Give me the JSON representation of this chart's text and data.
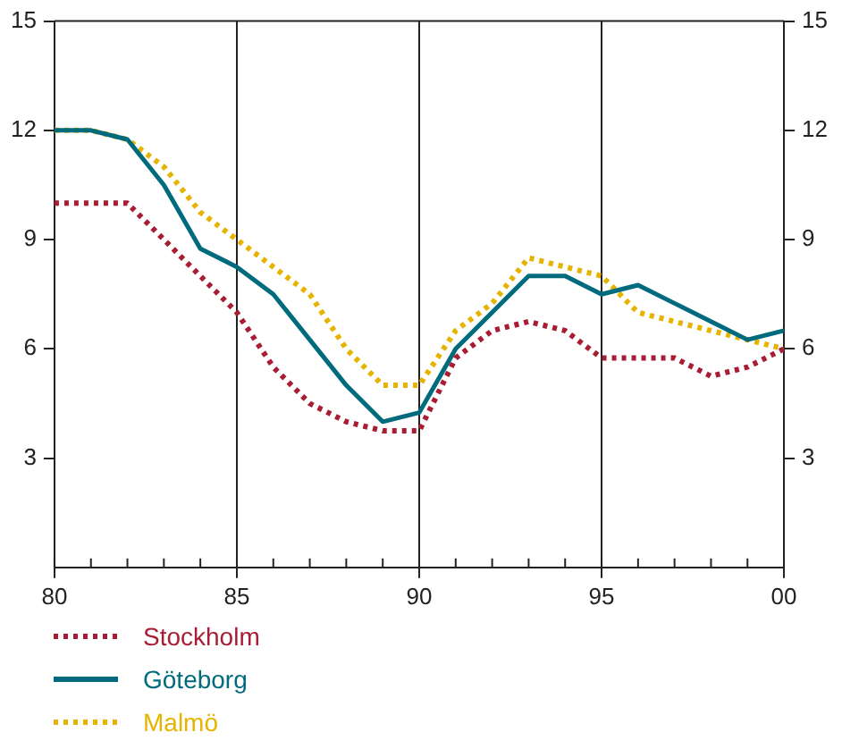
{
  "chart_data": {
    "type": "line",
    "x": [
      1980,
      1981,
      1982,
      1983,
      1984,
      1985,
      1986,
      1987,
      1988,
      1989,
      1990,
      1991,
      1992,
      1993,
      1994,
      1995,
      1996,
      1997,
      1998,
      1999,
      2000
    ],
    "series": [
      {
        "name": "Stockholm",
        "color": "#a81c34",
        "line_style": "dotted",
        "values": [
          10,
          10,
          10,
          9,
          8,
          7,
          5.5,
          4.5,
          4,
          3.75,
          3.75,
          5.75,
          6.5,
          6.75,
          6.5,
          5.75,
          5.75,
          5.75,
          5.25,
          5.5,
          6
        ]
      },
      {
        "name": "Göteborg",
        "color": "#006b7d",
        "line_style": "solid",
        "values": [
          12,
          12,
          11.75,
          10.5,
          8.75,
          8.25,
          7.5,
          6.25,
          5,
          4,
          4.25,
          6,
          7,
          8,
          8,
          7.5,
          7.75,
          7.25,
          6.75,
          6.25,
          6.5
        ]
      },
      {
        "name": "Malmö",
        "color": "#e6b400",
        "line_style": "dotted",
        "values": [
          12,
          12,
          11.75,
          11,
          9.75,
          9,
          8.25,
          7.5,
          6,
          5,
          5,
          6.5,
          7.25,
          8.5,
          8.25,
          8,
          7,
          6.75,
          6.5,
          6.25,
          6
        ]
      }
    ],
    "xlim": [
      1980,
      2000
    ],
    "xticks": [
      {
        "value": 1980,
        "label": "80"
      },
      {
        "value": 1985,
        "label": "85"
      },
      {
        "value": 1990,
        "label": "90"
      },
      {
        "value": 1995,
        "label": "95"
      },
      {
        "value": 2000,
        "label": "00"
      }
    ],
    "ylim": [
      0,
      15
    ],
    "yticks": [
      3,
      6,
      9,
      12,
      15
    ],
    "y2lim": [
      0,
      15
    ],
    "y2ticks": [
      3,
      6,
      9,
      12,
      15
    ],
    "grid": "x",
    "legend": "bottom",
    "marker": "none"
  }
}
